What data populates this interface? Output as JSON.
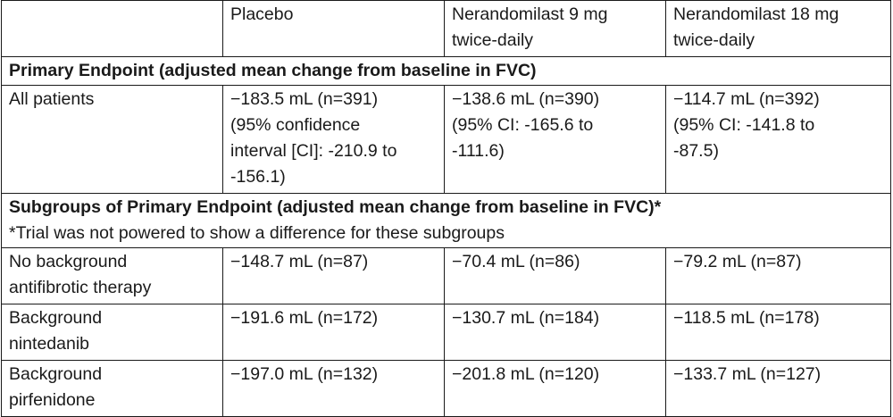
{
  "header": {
    "col1": "",
    "col2": "Placebo",
    "col3": "Nerandomilast 9 mg\ntwice-daily",
    "col4": "Nerandomilast 18 mg\ntwice-daily"
  },
  "primary": {
    "title": "Primary Endpoint (adjusted mean change from baseline in FVC)",
    "rows": [
      {
        "label": "All patients",
        "placebo": "−183.5 mL (n=391)\n(95% confidence\ninterval [CI]: -210.9 to\n-156.1)",
        "dose9": "−138.6 mL (n=390)\n(95% CI: -165.6 to\n-111.6)",
        "dose18": "−114.7 mL (n=392)\n(95% CI: -141.8 to\n-87.5)"
      }
    ]
  },
  "subgroups": {
    "title": "Subgroups of Primary Endpoint (adjusted mean change from baseline in FVC)*",
    "note": "*Trial was not powered to show a difference for these subgroups",
    "rows": [
      {
        "label": "No background\nantifibrotic therapy",
        "placebo": "−148.7 mL (n=87)",
        "dose9": "−70.4 mL (n=86)",
        "dose18": "−79.2 mL (n=87)"
      },
      {
        "label": "Background\nnintedanib",
        "placebo": "−191.6 mL (n=172)",
        "dose9": "−130.7 mL (n=184)",
        "dose18": "−118.5 mL (n=178)"
      },
      {
        "label": "Background\npirfenidone",
        "placebo": "−197.0 mL (n=132)",
        "dose9": "−201.8 mL (n=120)",
        "dose18": "−133.7 mL (n=127)"
      }
    ]
  }
}
